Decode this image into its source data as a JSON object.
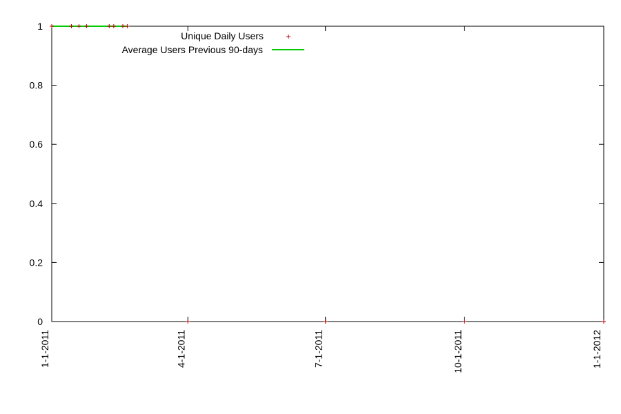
{
  "chart_data": {
    "type": "scatter",
    "title": "",
    "xlabel": "",
    "ylabel": "",
    "x_ticks": [
      "1-1-2011",
      "4-1-2011",
      "7-1-2011",
      "10-1-2011",
      "1-1-2012"
    ],
    "xlim": [
      "2011-01-01",
      "2012-01-01"
    ],
    "y_ticks": [
      "0",
      "0.2",
      "0.4",
      "0.6",
      "0.8",
      "1"
    ],
    "ylim": [
      0,
      1
    ],
    "grid": false,
    "legend_position": "top-left",
    "series": [
      {
        "name": "Unique Daily Users",
        "type": "scatter",
        "marker": "+",
        "color": "#c00000",
        "points": [
          {
            "x": "2011-01-01",
            "y": 1
          },
          {
            "x": "2011-01-14",
            "y": 1
          },
          {
            "x": "2011-01-19",
            "y": 1
          },
          {
            "x": "2011-01-24",
            "y": 1
          },
          {
            "x": "2011-02-08",
            "y": 1
          },
          {
            "x": "2011-02-11",
            "y": 1
          },
          {
            "x": "2011-02-17",
            "y": 1
          },
          {
            "x": "2011-02-20",
            "y": 1
          },
          {
            "x": "2011-04-01",
            "y": 0
          },
          {
            "x": "2011-07-01",
            "y": 0
          },
          {
            "x": "2011-10-01",
            "y": 0
          },
          {
            "x": "2012-01-01",
            "y": 0
          }
        ]
      },
      {
        "name": "Average Users Previous 90-days",
        "type": "line",
        "color": "#00cc00",
        "points": [
          {
            "x": "2011-01-01",
            "y": 1
          },
          {
            "x": "2011-02-20",
            "y": 1
          }
        ]
      }
    ]
  }
}
